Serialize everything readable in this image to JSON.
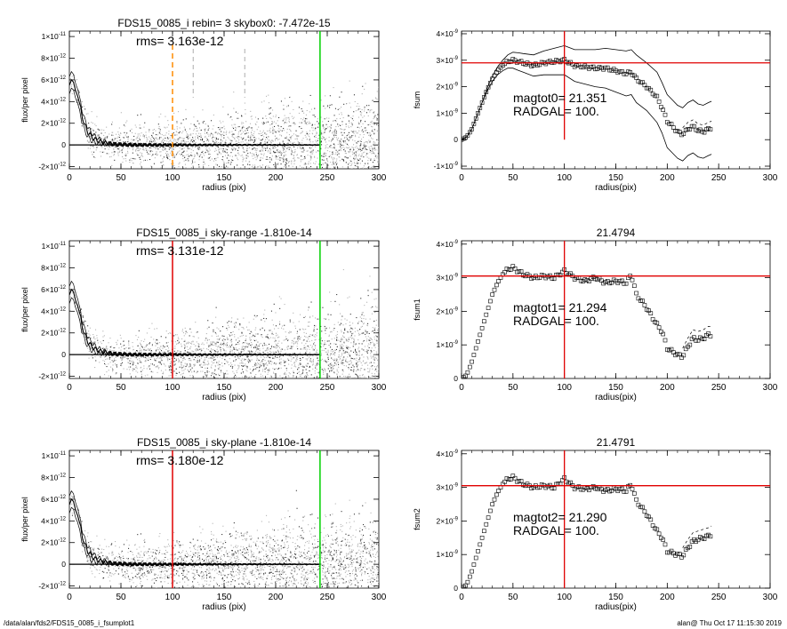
{
  "footer": {
    "left": "/data/alan/fds2/FDS15_0085_i_fsumplot1",
    "right": "alan@  Thu Oct 17 11:15:30 2019"
  },
  "colors": {
    "scatter": "#b4b4b4",
    "profile": "#000000",
    "red_line": "#e00000",
    "green_line": "#00d000",
    "orange_dash": "#ff8c00"
  },
  "chart_data": [
    {
      "id": "flux-1",
      "type": "scatter",
      "title": "FDS15_0085_i rebin= 3    skybox0: -7.472e-15",
      "annotation": "rms= 3.163e-12",
      "xlabel": "radius (pix)",
      "ylabel": "flux/per pixel",
      "xlim": [
        0,
        300
      ],
      "ylim": [
        -2.2e-12,
        1.05e-11
      ],
      "xticks": [
        "0",
        "50",
        "100",
        "150",
        "200",
        "250",
        "300"
      ],
      "yticks": [
        {
          "v": -2e-12,
          "m": "-2×10",
          "e": "-12"
        },
        {
          "v": 0,
          "m": "0",
          "e": ""
        },
        {
          "v": 2e-12,
          "m": "2×10",
          "e": "-12"
        },
        {
          "v": 4e-12,
          "m": "4×10",
          "e": "-12"
        },
        {
          "v": 6e-12,
          "m": "6×10",
          "e": "-12"
        },
        {
          "v": 8e-12,
          "m": "8×10",
          "e": "-12"
        },
        {
          "v": 1e-11,
          "m": "1×10",
          "e": "-11"
        }
      ],
      "vertical_lines": [
        {
          "x": 100,
          "style": "orange-dashed"
        },
        {
          "x": 120,
          "style": "gray-dashed"
        },
        {
          "x": 170,
          "style": "gray-dashed"
        },
        {
          "x": 243,
          "style": "green"
        }
      ],
      "profile": {
        "x": [
          0,
          2,
          4,
          6,
          8,
          10,
          12,
          15,
          18,
          21,
          25,
          30,
          35,
          40,
          45,
          50,
          60,
          70,
          80,
          90,
          100,
          120,
          150,
          200,
          243
        ],
        "y": [
          5.5e-12,
          6e-12,
          5.8e-12,
          5e-12,
          4.5e-12,
          3.8e-12,
          2.8e-12,
          1.8e-12,
          1.2e-12,
          8e-13,
          5e-13,
          3e-13,
          2e-13,
          1e-13,
          5e-14,
          5e-14,
          0.0,
          0.0,
          0.0,
          0.0,
          0.0,
          0.0,
          0.0,
          0.0,
          0.0
        ]
      }
    },
    {
      "id": "fsum-0",
      "type": "line",
      "title": "",
      "annotation_lines": [
        "magtot0=  21.351",
        "RADGAL=    100."
      ],
      "xlabel": "radius(pix)",
      "ylabel": "fsum",
      "xlim": [
        0,
        300
      ],
      "ylim": [
        -1.1e-09,
        4.1e-09
      ],
      "xticks": [
        "0",
        "50",
        "100",
        "150",
        "200",
        "250",
        "300"
      ],
      "yticks": [
        {
          "v": -1e-09,
          "m": "-1×10",
          "e": "-9"
        },
        {
          "v": 0,
          "m": "0",
          "e": ""
        },
        {
          "v": 1e-09,
          "m": "1×10",
          "e": "-9"
        },
        {
          "v": 2e-09,
          "m": "2×10",
          "e": "-9"
        },
        {
          "v": 3e-09,
          "m": "3×10",
          "e": "-9"
        },
        {
          "v": 4e-09,
          "m": "4×10",
          "e": "-9"
        }
      ],
      "hline": 2.9e-09,
      "vline": 100,
      "curve": {
        "x": [
          0,
          5,
          10,
          15,
          20,
          25,
          30,
          35,
          40,
          45,
          50,
          55,
          60,
          70,
          80,
          90,
          100,
          110,
          120,
          130,
          140,
          150,
          160,
          165,
          170,
          180,
          190,
          195,
          200,
          205,
          210,
          215,
          220,
          225,
          230,
          235,
          240,
          243
        ],
        "y": [
          0.0,
          1e-10,
          4e-10,
          9e-10,
          1.4e-09,
          1.9e-09,
          2.3e-09,
          2.6e-09,
          2.8e-09,
          2.95e-09,
          3e-09,
          2.95e-09,
          2.9e-09,
          2.8e-09,
          2.9e-09,
          2.95e-09,
          3e-09,
          2.8e-09,
          2.75e-09,
          2.7e-09,
          2.7e-09,
          2.6e-09,
          2.5e-09,
          2.55e-09,
          2.3e-09,
          2e-09,
          1.6e-09,
          1.2e-09,
          7e-10,
          5e-10,
          3e-10,
          2e-10,
          4e-10,
          5e-10,
          3.5e-10,
          3e-10,
          4e-10,
          4.5e-10
        ]
      },
      "upper_offset": [
        0,
        0,
        0,
        0,
        0,
        5e-11,
        1e-10,
        1.5e-10,
        2e-10,
        2.5e-10,
        3e-10,
        3.3e-10,
        3.5e-10,
        4e-10,
        4.5e-10,
        5e-10,
        5.5e-10,
        6e-10,
        6.5e-10,
        7e-10,
        7.5e-10,
        8e-10,
        8.5e-10,
        8.5e-10,
        9e-10,
        9e-10,
        9.5e-10,
        9.5e-10,
        1e-09,
        1e-09,
        1e-09,
        1e-09,
        1e-09,
        1e-09,
        1e-09,
        1e-09,
        1e-09,
        1e-09
      ]
    },
    {
      "id": "flux-2",
      "type": "scatter",
      "title": "FDS15_0085_i sky-range -1.810e-14",
      "annotation": "rms= 3.131e-12",
      "xlabel": "radius (pix)",
      "ylabel": "flux/per pixel",
      "xlim": [
        0,
        300
      ],
      "ylim": [
        -2.2e-12,
        1.05e-11
      ],
      "xticks": [
        "0",
        "50",
        "100",
        "150",
        "200",
        "250",
        "300"
      ],
      "yticks": [
        {
          "v": -2e-12,
          "m": "-2×10",
          "e": "-12"
        },
        {
          "v": 0,
          "m": "0",
          "e": ""
        },
        {
          "v": 2e-12,
          "m": "2×10",
          "e": "-12"
        },
        {
          "v": 4e-12,
          "m": "4×10",
          "e": "-12"
        },
        {
          "v": 6e-12,
          "m": "6×10",
          "e": "-12"
        },
        {
          "v": 8e-12,
          "m": "8×10",
          "e": "-12"
        },
        {
          "v": 1e-11,
          "m": "1×10",
          "e": "-11"
        }
      ],
      "vertical_lines": [
        {
          "x": 100,
          "style": "red"
        },
        {
          "x": 243,
          "style": "green"
        }
      ],
      "profile": {
        "x": [
          0,
          2,
          4,
          6,
          8,
          10,
          12,
          15,
          18,
          21,
          25,
          30,
          35,
          40,
          45,
          50,
          60,
          70,
          80,
          90,
          100,
          120,
          150,
          200,
          243
        ],
        "y": [
          5.5e-12,
          6e-12,
          5.8e-12,
          5e-12,
          4.5e-12,
          3.8e-12,
          2.8e-12,
          1.8e-12,
          1.2e-12,
          8e-13,
          5e-13,
          3e-13,
          2e-13,
          1e-13,
          5e-14,
          5e-14,
          0.0,
          0.0,
          0.0,
          0.0,
          0.0,
          0.0,
          0.0,
          0.0,
          0.0
        ]
      }
    },
    {
      "id": "fsum-1",
      "type": "line",
      "title": "21.4794",
      "annotation_lines": [
        "magtot1=  21.294",
        "RADGAL=    100."
      ],
      "xlabel": "radius(pix)",
      "ylabel": "fsum1",
      "xlim": [
        0,
        300
      ],
      "ylim": [
        0,
        4.1e-09
      ],
      "xticks": [
        "0",
        "50",
        "100",
        "150",
        "200",
        "250",
        "300"
      ],
      "yticks": [
        {
          "v": 0,
          "m": "0",
          "e": ""
        },
        {
          "v": 1e-09,
          "m": "1×10",
          "e": "-9"
        },
        {
          "v": 2e-09,
          "m": "2×10",
          "e": "-9"
        },
        {
          "v": 3e-09,
          "m": "3×10",
          "e": "-9"
        },
        {
          "v": 4e-09,
          "m": "4×10",
          "e": "-9"
        }
      ],
      "hline": 3.05e-09,
      "vline": 100,
      "curve": {
        "x": [
          0,
          5,
          10,
          15,
          20,
          25,
          30,
          35,
          40,
          45,
          50,
          55,
          60,
          70,
          80,
          90,
          100,
          110,
          120,
          130,
          140,
          150,
          160,
          165,
          170,
          180,
          190,
          195,
          200,
          205,
          210,
          215,
          220,
          225,
          230,
          235,
          240,
          243
        ],
        "y": [
          0.0,
          1e-10,
          5e-10,
          1e-09,
          1.5e-09,
          2e-09,
          2.5e-09,
          2.85e-09,
          3.1e-09,
          3.25e-09,
          3.3e-09,
          3.2e-09,
          3.1e-09,
          3e-09,
          3.05e-09,
          3e-09,
          3.2e-09,
          3e-09,
          2.9e-09,
          3e-09,
          2.85e-09,
          2.9e-09,
          2.85e-09,
          3.1e-09,
          2.5e-09,
          2.1e-09,
          1.6e-09,
          1.4e-09,
          9e-10,
          8e-10,
          7e-10,
          6.5e-10,
          9.5e-10,
          1.2e-09,
          1.15e-09,
          1.2e-09,
          1.3e-09,
          1.3e-09
        ]
      }
    },
    {
      "id": "flux-3",
      "type": "scatter",
      "title": "FDS15_0085_i sky-plane -1.810e-14",
      "annotation": "rms= 3.180e-12",
      "xlabel": "radius (pix)",
      "ylabel": "flux/per pixel",
      "xlim": [
        0,
        300
      ],
      "ylim": [
        -2.2e-12,
        1.05e-11
      ],
      "xticks": [
        "0",
        "50",
        "100",
        "150",
        "200",
        "250",
        "300"
      ],
      "yticks": [
        {
          "v": -2e-12,
          "m": "-2×10",
          "e": "-12"
        },
        {
          "v": 0,
          "m": "0",
          "e": ""
        },
        {
          "v": 2e-12,
          "m": "2×10",
          "e": "-12"
        },
        {
          "v": 4e-12,
          "m": "4×10",
          "e": "-12"
        },
        {
          "v": 6e-12,
          "m": "6×10",
          "e": "-12"
        },
        {
          "v": 8e-12,
          "m": "8×10",
          "e": "-12"
        },
        {
          "v": 1e-11,
          "m": "1×10",
          "e": "-11"
        }
      ],
      "vertical_lines": [
        {
          "x": 100,
          "style": "red"
        },
        {
          "x": 243,
          "style": "green"
        }
      ],
      "profile": {
        "x": [
          0,
          2,
          4,
          6,
          8,
          10,
          12,
          15,
          18,
          21,
          25,
          30,
          35,
          40,
          45,
          50,
          60,
          70,
          80,
          90,
          100,
          120,
          150,
          200,
          243
        ],
        "y": [
          5.5e-12,
          6e-12,
          5.8e-12,
          5e-12,
          4.5e-12,
          3.8e-12,
          2.8e-12,
          1.8e-12,
          1.2e-12,
          8e-13,
          5e-13,
          3e-13,
          2e-13,
          1e-13,
          5e-14,
          5e-14,
          0.0,
          0.0,
          0.0,
          0.0,
          0.0,
          0.0,
          0.0,
          0.0,
          0.0
        ]
      }
    },
    {
      "id": "fsum-2",
      "type": "line",
      "title": "21.4791",
      "annotation_lines": [
        "magtot2=  21.290",
        "RADGAL=    100."
      ],
      "xlabel": "radius(pix)",
      "ylabel": "fsum2",
      "xlim": [
        0,
        300
      ],
      "ylim": [
        0,
        4.1e-09
      ],
      "xticks": [
        "0",
        "50",
        "100",
        "150",
        "200",
        "250",
        "300"
      ],
      "yticks": [
        {
          "v": 0,
          "m": "0",
          "e": ""
        },
        {
          "v": 1e-09,
          "m": "1×10",
          "e": "-9"
        },
        {
          "v": 2e-09,
          "m": "2×10",
          "e": "-9"
        },
        {
          "v": 3e-09,
          "m": "3×10",
          "e": "-9"
        },
        {
          "v": 4e-09,
          "m": "4×10",
          "e": "-9"
        }
      ],
      "hline": 3.05e-09,
      "vline": 100,
      "curve": {
        "x": [
          0,
          5,
          10,
          15,
          20,
          25,
          30,
          35,
          40,
          45,
          50,
          55,
          60,
          70,
          80,
          90,
          100,
          110,
          120,
          130,
          140,
          150,
          160,
          165,
          170,
          180,
          190,
          195,
          200,
          205,
          210,
          215,
          220,
          225,
          230,
          235,
          240,
          243
        ],
        "y": [
          0.0,
          1e-10,
          5e-10,
          1e-09,
          1.5e-09,
          2e-09,
          2.5e-09,
          2.85e-09,
          3.1e-09,
          3.25e-09,
          3.3e-09,
          3.2e-09,
          3.1e-09,
          3e-09,
          3.05e-09,
          3e-09,
          3.25e-09,
          3e-09,
          2.95e-09,
          3e-09,
          2.9e-09,
          2.95e-09,
          2.9e-09,
          3.1e-09,
          2.6e-09,
          2.2e-09,
          1.7e-09,
          1.5e-09,
          1.1e-09,
          1.05e-09,
          1e-09,
          9.5e-10,
          1.2e-09,
          1.4e-09,
          1.45e-09,
          1.5e-09,
          1.55e-09,
          1.6e-09
        ]
      }
    }
  ]
}
